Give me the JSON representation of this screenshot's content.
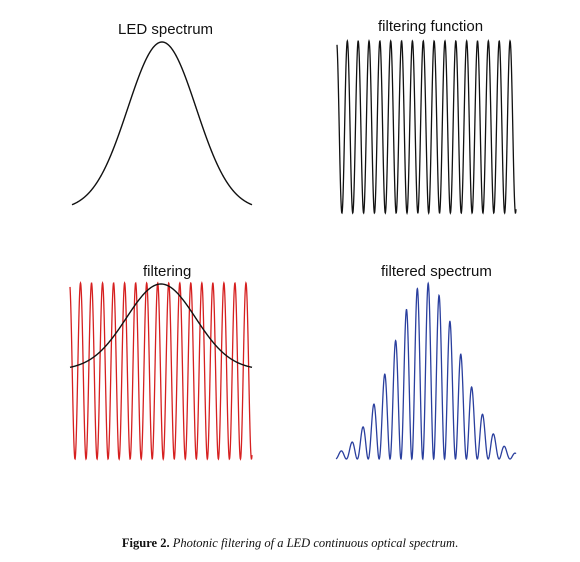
{
  "panels": {
    "led": {
      "title": "LED spectrum"
    },
    "filter": {
      "title": "filtering function"
    },
    "filtering": {
      "title": "filtering"
    },
    "filtered": {
      "title": "filtered spectrum"
    }
  },
  "colors": {
    "black": "#111111",
    "red": "#d62020",
    "blue": "#2a3f9e"
  },
  "caption": {
    "label": "Figure 2.",
    "text": "Photonic filtering of a LED continuous optical spectrum"
  }
}
